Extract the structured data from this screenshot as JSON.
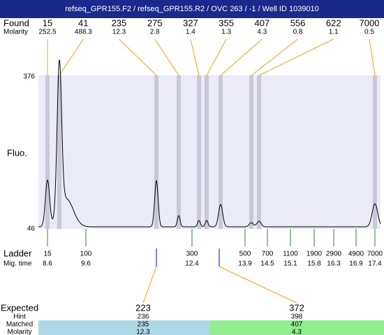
{
  "header": {
    "title": "refseq_GPR155.F2 / refseq_GPR155.R2 / OVC 263 / -1 / Well ID 1039010"
  },
  "found": {
    "label": "Found",
    "molarity_label": "Molarity",
    "sizes": [
      15,
      41,
      235,
      275,
      327,
      355,
      407,
      556,
      622,
      7000
    ],
    "molarity": [
      252.5,
      488.3,
      12.3,
      2.8,
      1.4,
      1.3,
      4.3,
      0.8,
      1.1,
      0.5
    ]
  },
  "plot": {
    "y_label": "Fluo.",
    "y_max": 376,
    "y_min": 46
  },
  "ladder": {
    "label": "Ladder",
    "time_label": "Mig. time",
    "sizes": [
      15,
      100,
      300,
      500,
      700,
      1100,
      1900,
      2900,
      4900,
      7000
    ],
    "times": [
      8.6,
      9.6,
      12.4,
      13.9,
      14.5,
      15.1,
      15.8,
      16.3,
      16.9,
      17.4
    ]
  },
  "expected": {
    "label": "Expected",
    "hint_label": "Hint",
    "matched_label": "Matched",
    "molarity_label": "Molarity",
    "peaks": [
      {
        "expected": 223,
        "hint": 236,
        "matched": 235,
        "molarity": 12.3
      },
      {
        "expected": 372,
        "hint": 398,
        "matched": 407,
        "molarity": 4.3
      }
    ]
  }
}
